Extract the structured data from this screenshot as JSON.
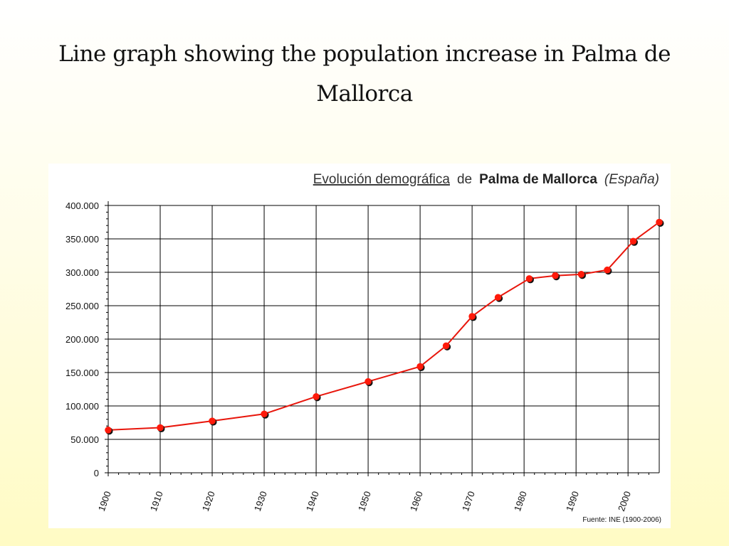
{
  "slide": {
    "title": "Line graph showing the population increase in Palma de Mallorca"
  },
  "chart_data": {
    "type": "line",
    "title_parts": {
      "part1": "Evolución demográfica",
      "part2": "de",
      "part3": "Palma de Mallorca",
      "part4": "(España)"
    },
    "source": "Fuente: INE (1900-2006)",
    "xlim": [
      1900,
      2006
    ],
    "ylim": [
      0,
      400000
    ],
    "y_ticks": [
      {
        "value": 0,
        "label": "0"
      },
      {
        "value": 50000,
        "label": "50.000"
      },
      {
        "value": 100000,
        "label": "100.000"
      },
      {
        "value": 150000,
        "label": "150.000"
      },
      {
        "value": 200000,
        "label": "200.000"
      },
      {
        "value": 250000,
        "label": "250.000"
      },
      {
        "value": 300000,
        "label": "300.000"
      },
      {
        "value": 350000,
        "label": "350.000"
      },
      {
        "value": 400000,
        "label": "400.000"
      }
    ],
    "x_ticks": [
      {
        "value": 1900,
        "label": "1900"
      },
      {
        "value": 1910,
        "label": "1910"
      },
      {
        "value": 1920,
        "label": "1920"
      },
      {
        "value": 1930,
        "label": "1930"
      },
      {
        "value": 1940,
        "label": "1940"
      },
      {
        "value": 1950,
        "label": "1950"
      },
      {
        "value": 1960,
        "label": "1960"
      },
      {
        "value": 1970,
        "label": "1970"
      },
      {
        "value": 1980,
        "label": "1980"
      },
      {
        "value": 1990,
        "label": "1990"
      },
      {
        "value": 2000,
        "label": "2000"
      }
    ],
    "grid": true,
    "line_color": "#e8160c",
    "marker_color": "#ff1a0a",
    "series": [
      {
        "x": [
          1900,
          1910,
          1920,
          1930,
          1940,
          1950,
          1960,
          1965,
          1970,
          1975,
          1981,
          1986,
          1991,
          1996,
          2001,
          2006
        ],
        "values": [
          64000,
          67500,
          77500,
          88000,
          114000,
          136500,
          159000,
          190000,
          234000,
          262500,
          290500,
          295000,
          297000,
          303500,
          346500,
          375000
        ]
      }
    ]
  }
}
